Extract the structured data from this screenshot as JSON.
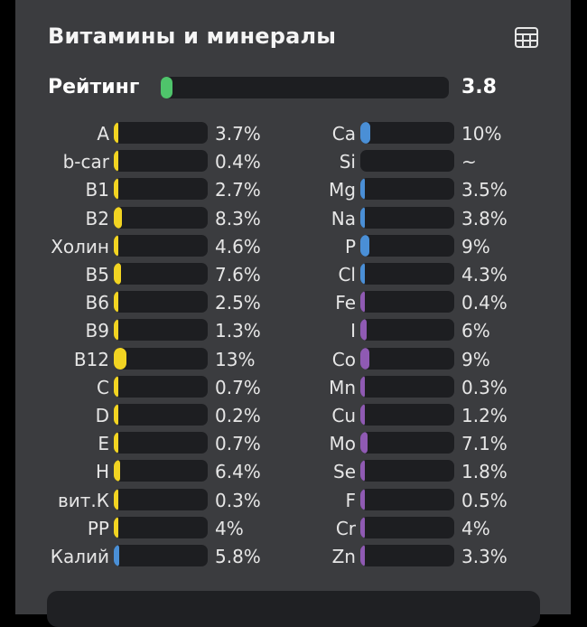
{
  "title": "Витамины и минералы",
  "rating": {
    "label": "Рейтинг",
    "value": "3.8",
    "fill_fraction": 0.04,
    "color": "#4fc46b"
  },
  "colors": {
    "vitamin": "#f2d422",
    "mineral_blue": "#4a8fd6",
    "mineral_purple": "#8f5ab3"
  },
  "vitamins": [
    {
      "name": "A",
      "value": "3.7%",
      "pct": 3.7,
      "color": "#f2d422"
    },
    {
      "name": "b-car",
      "value": "0.4%",
      "pct": 0.4,
      "color": "#f2d422"
    },
    {
      "name": "B1",
      "value": "2.7%",
      "pct": 2.7,
      "color": "#f2d422"
    },
    {
      "name": "B2",
      "value": "8.3%",
      "pct": 8.3,
      "color": "#f2d422"
    },
    {
      "name": "Холин",
      "value": "4.6%",
      "pct": 4.6,
      "color": "#f2d422"
    },
    {
      "name": "B5",
      "value": "7.6%",
      "pct": 7.6,
      "color": "#f2d422"
    },
    {
      "name": "B6",
      "value": "2.5%",
      "pct": 2.5,
      "color": "#f2d422"
    },
    {
      "name": "B9",
      "value": "1.3%",
      "pct": 1.3,
      "color": "#f2d422"
    },
    {
      "name": "B12",
      "value": "13%",
      "pct": 13,
      "color": "#f2d422"
    },
    {
      "name": "C",
      "value": "0.7%",
      "pct": 0.7,
      "color": "#f2d422"
    },
    {
      "name": "D",
      "value": "0.2%",
      "pct": 0.2,
      "color": "#f2d422"
    },
    {
      "name": "E",
      "value": "0.7%",
      "pct": 0.7,
      "color": "#f2d422"
    },
    {
      "name": "H",
      "value": "6.4%",
      "pct": 6.4,
      "color": "#f2d422"
    },
    {
      "name": "вит.К",
      "value": "0.3%",
      "pct": 0.3,
      "color": "#f2d422"
    },
    {
      "name": "PP",
      "value": "4%",
      "pct": 4,
      "color": "#f2d422"
    },
    {
      "name": "Калий",
      "value": "5.8%",
      "pct": 5.8,
      "color": "#4a8fd6"
    }
  ],
  "minerals": [
    {
      "name": "Ca",
      "value": "10%",
      "pct": 10,
      "color": "#4a8fd6"
    },
    {
      "name": "Si",
      "value": "~",
      "pct": 0,
      "color": "#4a8fd6"
    },
    {
      "name": "Mg",
      "value": "3.5%",
      "pct": 3.5,
      "color": "#4a8fd6"
    },
    {
      "name": "Na",
      "value": "3.8%",
      "pct": 3.8,
      "color": "#4a8fd6"
    },
    {
      "name": "P",
      "value": "9%",
      "pct": 9,
      "color": "#4a8fd6"
    },
    {
      "name": "Cl",
      "value": "4.3%",
      "pct": 4.3,
      "color": "#4a8fd6"
    },
    {
      "name": "Fe",
      "value": "0.4%",
      "pct": 0.4,
      "color": "#8f5ab3"
    },
    {
      "name": "I",
      "value": "6%",
      "pct": 6,
      "color": "#8f5ab3"
    },
    {
      "name": "Co",
      "value": "9%",
      "pct": 9,
      "color": "#8f5ab3"
    },
    {
      "name": "Mn",
      "value": "0.3%",
      "pct": 0.3,
      "color": "#8f5ab3"
    },
    {
      "name": "Cu",
      "value": "1.2%",
      "pct": 1.2,
      "color": "#8f5ab3"
    },
    {
      "name": "Mo",
      "value": "7.1%",
      "pct": 7.1,
      "color": "#8f5ab3"
    },
    {
      "name": "Se",
      "value": "1.8%",
      "pct": 1.8,
      "color": "#8f5ab3"
    },
    {
      "name": "F",
      "value": "0.5%",
      "pct": 0.5,
      "color": "#8f5ab3"
    },
    {
      "name": "Cr",
      "value": "4%",
      "pct": 4,
      "color": "#8f5ab3"
    },
    {
      "name": "Zn",
      "value": "3.3%",
      "pct": 3.3,
      "color": "#8f5ab3"
    }
  ]
}
